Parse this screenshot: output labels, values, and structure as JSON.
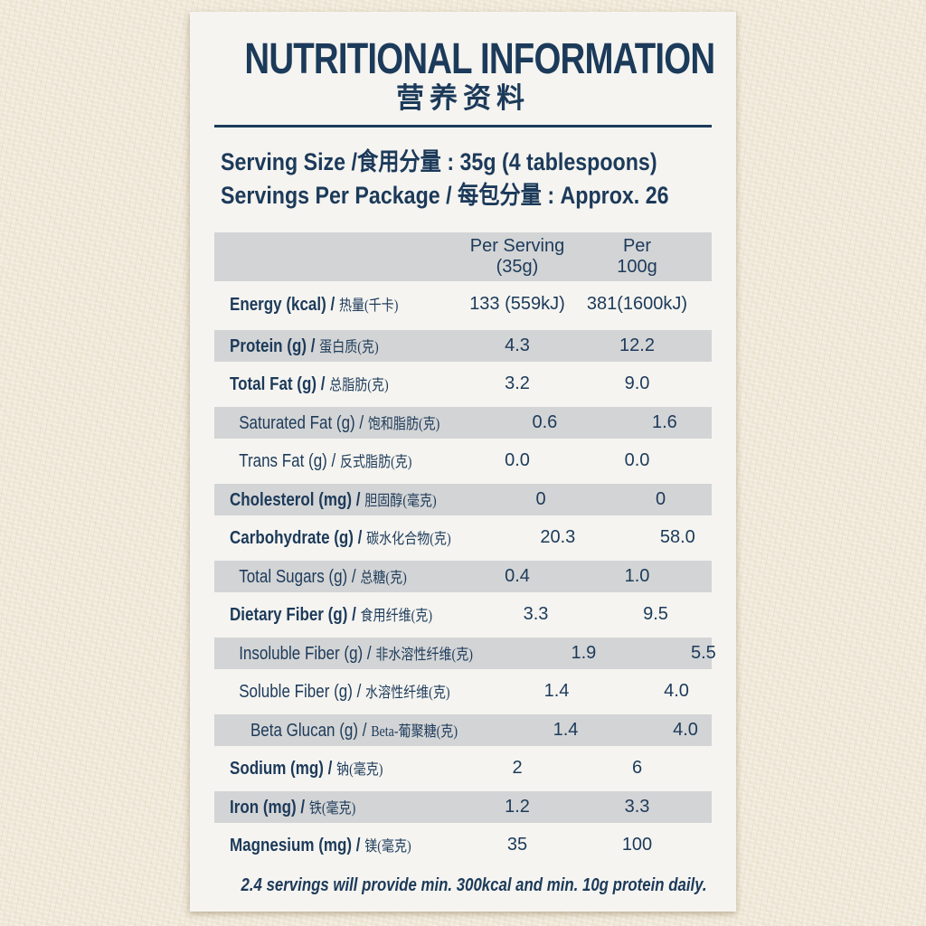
{
  "colors": {
    "text_navy": "#1c3a5a",
    "row_shade_gray": "#d3d4d5",
    "card_background": "#f5f4f0",
    "page_background": "#f0e9da"
  },
  "header": {
    "title_en": "NUTRITIONAL INFORMATION",
    "title_zh": "营养资料"
  },
  "serving_info": {
    "line1": "Serving Size /食用分量 : 35g (4 tablespoons)",
    "line2": "Servings Per Package / 每包分量 : Approx. 26"
  },
  "table": {
    "separator": "/",
    "columns": {
      "per_serving_line1": "Per Serving",
      "per_serving_line2": "(35g)",
      "per_100g_line1": "Per",
      "per_100g_line2": "100g"
    },
    "rows": [
      {
        "name_en": "Energy (kcal)",
        "name_zh": "热量(千卡)",
        "per_serving": "133 (559kJ)",
        "per_100g": "381(1600kJ)",
        "bold": true,
        "shaded": false,
        "indent": 0
      },
      {
        "name_en": "Protein (g)",
        "name_zh": "蛋白质(克)",
        "per_serving": "4.3",
        "per_100g": "12.2",
        "bold": true,
        "shaded": true,
        "indent": 0
      },
      {
        "name_en": "Total Fat (g)",
        "name_zh": "总脂肪(克)",
        "per_serving": "3.2",
        "per_100g": "9.0",
        "bold": true,
        "shaded": false,
        "indent": 0
      },
      {
        "name_en": "Saturated Fat (g)",
        "name_zh": "饱和脂肪(克)",
        "per_serving": "0.6",
        "per_100g": "1.6",
        "bold": false,
        "shaded": true,
        "indent": 1
      },
      {
        "name_en": "Trans Fat (g)",
        "name_zh": "反式脂肪(克)",
        "per_serving": "0.0",
        "per_100g": "0.0",
        "bold": false,
        "shaded": false,
        "indent": 1
      },
      {
        "name_en": "Cholesterol (mg)",
        "name_zh": "胆固醇(毫克)",
        "per_serving": "0",
        "per_100g": "0",
        "bold": true,
        "shaded": true,
        "indent": 0
      },
      {
        "name_en": "Carbohydrate (g)",
        "name_zh": "碳水化合物(克)",
        "per_serving": "20.3",
        "per_100g": "58.0",
        "bold": true,
        "shaded": false,
        "indent": 0
      },
      {
        "name_en": "Total Sugars (g)",
        "name_zh": "总糖(克)",
        "per_serving": "0.4",
        "per_100g": "1.0",
        "bold": false,
        "shaded": true,
        "indent": 1
      },
      {
        "name_en": "Dietary Fiber (g)",
        "name_zh": "食用纤维(克)",
        "per_serving": "3.3",
        "per_100g": "9.5",
        "bold": true,
        "shaded": false,
        "indent": 0
      },
      {
        "name_en": "Insoluble Fiber (g)",
        "name_zh": "非水溶性纤维(克)",
        "per_serving": "1.9",
        "per_100g": "5.5",
        "bold": false,
        "shaded": true,
        "indent": 1
      },
      {
        "name_en": "Soluble Fiber (g)",
        "name_zh": "水溶性纤维(克)",
        "per_serving": "1.4",
        "per_100g": "4.0",
        "bold": false,
        "shaded": false,
        "indent": 1
      },
      {
        "name_en": "Beta Glucan (g)",
        "name_zh": "Beta-葡聚糖(克)",
        "per_serving": "1.4",
        "per_100g": "4.0",
        "bold": false,
        "shaded": true,
        "indent": 2
      },
      {
        "name_en": "Sodium (mg)",
        "name_zh": "钠(毫克)",
        "per_serving": "2",
        "per_100g": "6",
        "bold": true,
        "shaded": false,
        "indent": 0
      },
      {
        "name_en": "Iron (mg)",
        "name_zh": "铁(毫克)",
        "per_serving": "1.2",
        "per_100g": "3.3",
        "bold": true,
        "shaded": true,
        "indent": 0
      },
      {
        "name_en": "Magnesium (mg)",
        "name_zh": "镁(毫克)",
        "per_serving": "35",
        "per_100g": "100",
        "bold": true,
        "shaded": false,
        "indent": 0
      }
    ]
  },
  "footnote": "2.4 servings will provide min. 300kcal and min. 10g protein daily."
}
